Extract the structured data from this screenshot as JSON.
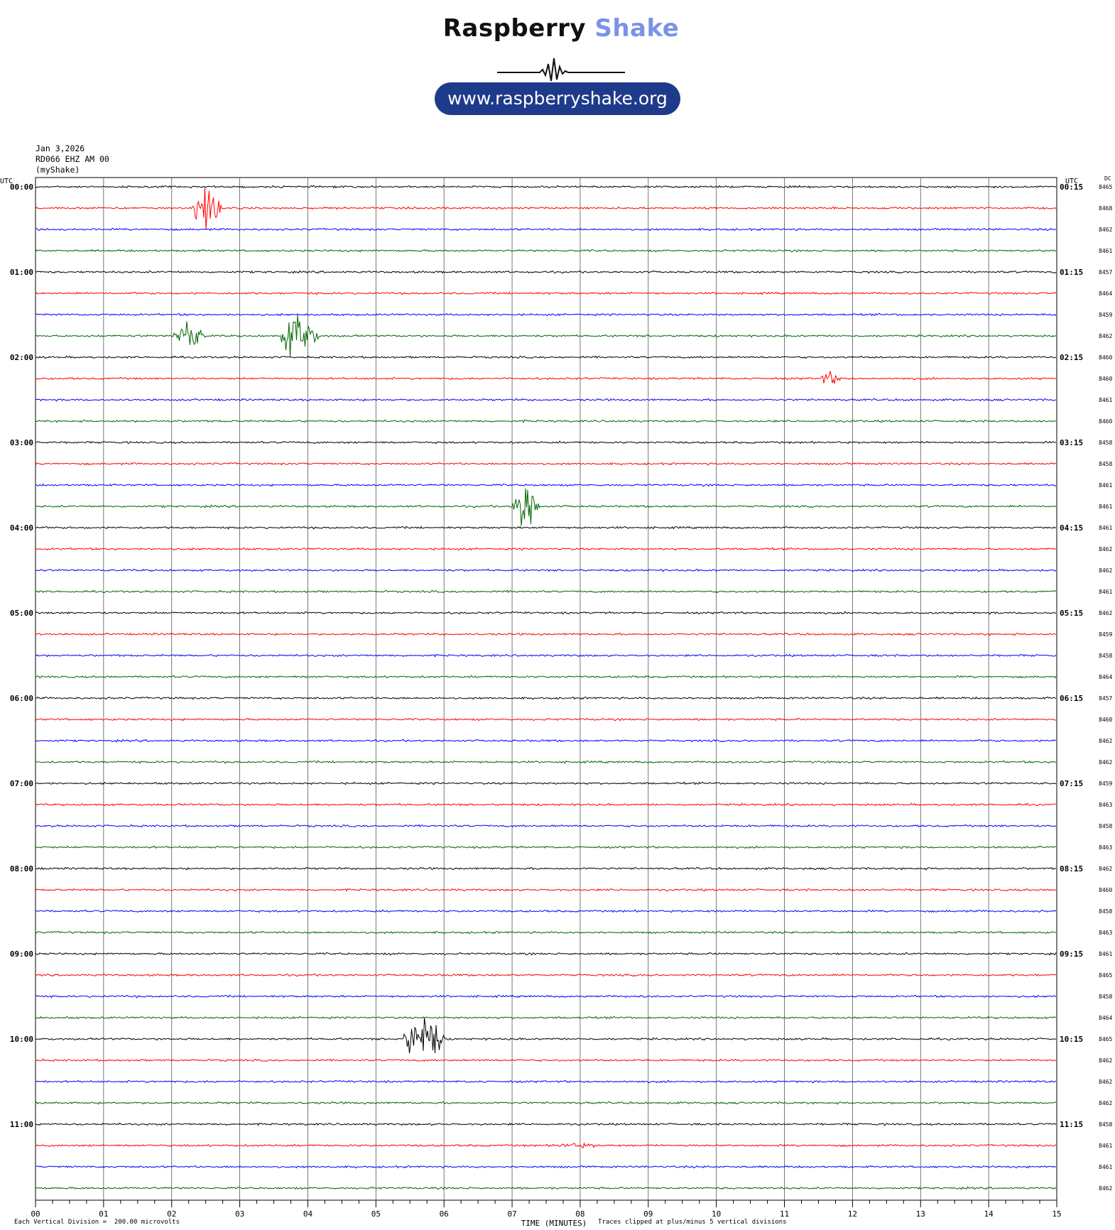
{
  "header": {
    "brand_main": "Raspberry",
    "brand_accent": "Shake",
    "url": "www.raspberryshake.org",
    "date": "Jan 3,2026",
    "station": "RD066 EHZ AM 00",
    "source": "(myShake)"
  },
  "footer": {
    "division_note": "Each Vertical Division =  200.00 microvolts",
    "xlabel": "TIME (MINUTES)",
    "clip_note": "Traces clipped at plus/minus 5 vertical divisions"
  },
  "colors": {
    "trace_cycle": [
      "#000000",
      "#ff0000",
      "#0000ff",
      "#006400"
    ],
    "grid": "#555555",
    "pill": "#1e3a8a",
    "accent": "#7b93e6"
  },
  "chart_data": {
    "type": "line",
    "left_axis_label": "UTC",
    "right_axis_label": "UTC",
    "dc_label": "DC",
    "xlim": [
      0,
      15
    ],
    "x_ticks": [
      "00",
      "01",
      "02",
      "03",
      "04",
      "05",
      "06",
      "07",
      "08",
      "09",
      "10",
      "11",
      "12",
      "13",
      "14",
      "15"
    ],
    "xlabel": "TIME (MINUTES)",
    "minutes_per_row": 15,
    "left_hour_labels": [
      "00:00",
      "01:00",
      "02:00",
      "03:00",
      "04:00",
      "05:00",
      "06:00",
      "07:00",
      "08:00",
      "09:00",
      "10:00",
      "11:00"
    ],
    "right_hour_labels": [
      "00:15",
      "01:15",
      "02:15",
      "03:15",
      "04:15",
      "05:15",
      "06:15",
      "07:15",
      "08:15",
      "09:15",
      "10:15",
      "11:15"
    ],
    "dc_offsets": [
      8465,
      8468,
      8462,
      8461,
      8457,
      8464,
      8459,
      8462,
      8460,
      8460,
      8461,
      8460,
      8458,
      8458,
      8461,
      8461,
      8461,
      8462,
      8462,
      8461,
      8462,
      8459,
      8458,
      8464,
      8457,
      8460,
      8462,
      8462,
      8459,
      8463,
      8458,
      8463,
      8462,
      8460,
      8458,
      8463,
      8461,
      8465,
      8458,
      8464,
      8465,
      8462,
      8462,
      8462,
      8458,
      8461,
      8461,
      8462
    ],
    "events": [
      {
        "row": 1,
        "start_min": 2.3,
        "end_min": 3.0,
        "amplitude": 5
      },
      {
        "row": 7,
        "start_min": 2.0,
        "end_min": 2.8,
        "amplitude": 3
      },
      {
        "row": 7,
        "start_min": 3.6,
        "end_min": 4.5,
        "amplitude": 5
      },
      {
        "row": 9,
        "start_min": 11.5,
        "end_min": 12.1,
        "amplitude": 1.2
      },
      {
        "row": 15,
        "start_min": 7.0,
        "end_min": 7.7,
        "amplitude": 5
      },
      {
        "row": 40,
        "start_min": 5.4,
        "end_min": 6.4,
        "amplitude": 5
      },
      {
        "row": 45,
        "start_min": 7.5,
        "end_min": 9.0,
        "amplitude": 0.5
      }
    ]
  }
}
